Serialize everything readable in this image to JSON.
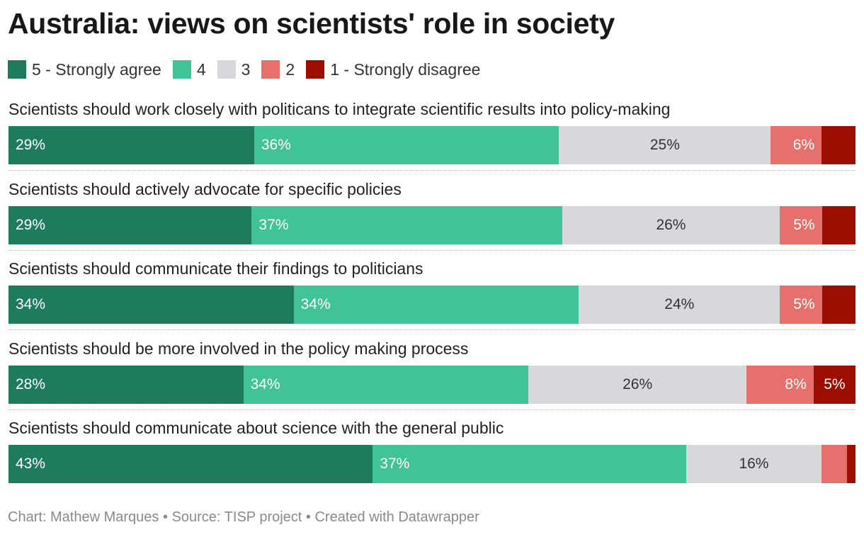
{
  "title": "Australia: views on scientists' role in society",
  "footer": {
    "chart_by": "Chart: Mathew Marques",
    "separator": " • ",
    "source": "Source: TISP project",
    "created_with": "Created with Datawrapper"
  },
  "colors": {
    "strongly_agree": "#1f7b5e",
    "agree": "#41c297",
    "neutral": "#d7d7dc",
    "disagree": "#e6716c",
    "strongly_disagree": "#9b0e00"
  },
  "chart_data": {
    "type": "bar",
    "orientation": "horizontal",
    "stacked": true,
    "normalized": true,
    "title": "Australia: views on scientists' role in society",
    "legend_position": "top",
    "grid": false,
    "xlim": [
      0,
      100
    ],
    "unit": "%",
    "categories": [
      "Scientists should work closely with politicans to integrate scientific results into policy-making",
      "Scientists should actively advocate for specific policies",
      "Scientists should communicate their findings to politicians",
      "Scientists should be more involved in the policy making process",
      "Scientists should communicate about science with the general public"
    ],
    "series": [
      {
        "name": "5 - Strongly agree",
        "color": "#1f7b5e",
        "values": [
          29,
          29,
          34,
          28,
          43
        ],
        "labels": [
          "29%",
          "29%",
          "34%",
          "28%",
          "43%"
        ]
      },
      {
        "name": "4",
        "color": "#41c297",
        "values": [
          36,
          37,
          34,
          34,
          37
        ],
        "labels": [
          "36%",
          "37%",
          "34%",
          "34%",
          "37%"
        ]
      },
      {
        "name": "3",
        "color": "#d7d7dc",
        "values": [
          25,
          26,
          24,
          26,
          16
        ],
        "labels": [
          "25%",
          "26%",
          "24%",
          "26%",
          "16%"
        ]
      },
      {
        "name": "2",
        "color": "#e6716c",
        "values": [
          6,
          5,
          5,
          8,
          3
        ],
        "labels": [
          "6%",
          "5%",
          "5%",
          "8%",
          ""
        ]
      },
      {
        "name": "1 - Strongly disagree",
        "color": "#9b0e00",
        "values": [
          4,
          4,
          4,
          5,
          1
        ],
        "labels": [
          "",
          "",
          "",
          "5%",
          ""
        ]
      }
    ]
  }
}
